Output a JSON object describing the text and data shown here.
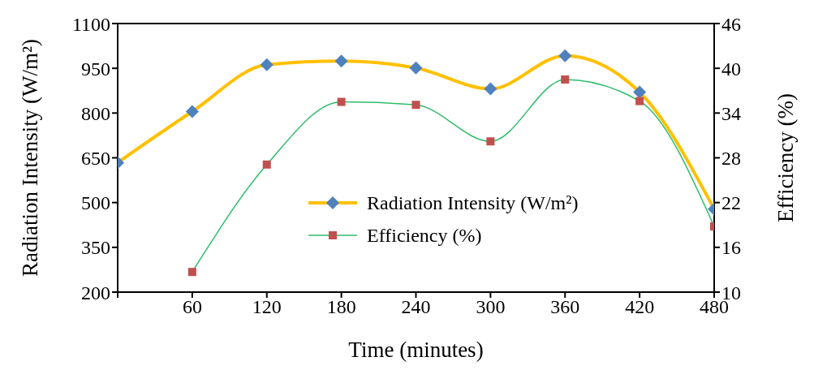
{
  "chart_data": {
    "type": "line",
    "xlabel": "Time (minutes)",
    "ylabel": "Radiation Intensity (W/m²)",
    "y2label": "Efficiency (%)",
    "x": [
      0,
      60,
      120,
      180,
      240,
      300,
      360,
      420,
      480
    ],
    "xlim": [
      0,
      480
    ],
    "xticks": [
      {
        "value": 0,
        "label": null
      },
      60,
      120,
      180,
      240,
      300,
      360,
      420,
      480
    ],
    "ylim": [
      200,
      1100
    ],
    "yticks": [
      200,
      350,
      500,
      650,
      800,
      950,
      1100
    ],
    "y2lim": [
      10,
      46
    ],
    "y2ticks": [
      10,
      16,
      22,
      28,
      34,
      40,
      46
    ],
    "series": [
      {
        "name": "Radiation Intensity (W/m²)",
        "color": "#ffc000",
        "marker": "diamond",
        "values": [
          634,
          805,
          962,
          974,
          951,
          881,
          992,
          870,
          478
        ]
      },
      {
        "name": "Efficiency (%)",
        "color": "#2ebd6b",
        "marker": "square",
        "axis": "y2",
        "values": [
          null,
          12.7,
          27.1,
          35.5,
          35.1,
          30.2,
          38.5,
          35.6,
          18.8
        ]
      }
    ],
    "legend": "center",
    "grid": false
  }
}
